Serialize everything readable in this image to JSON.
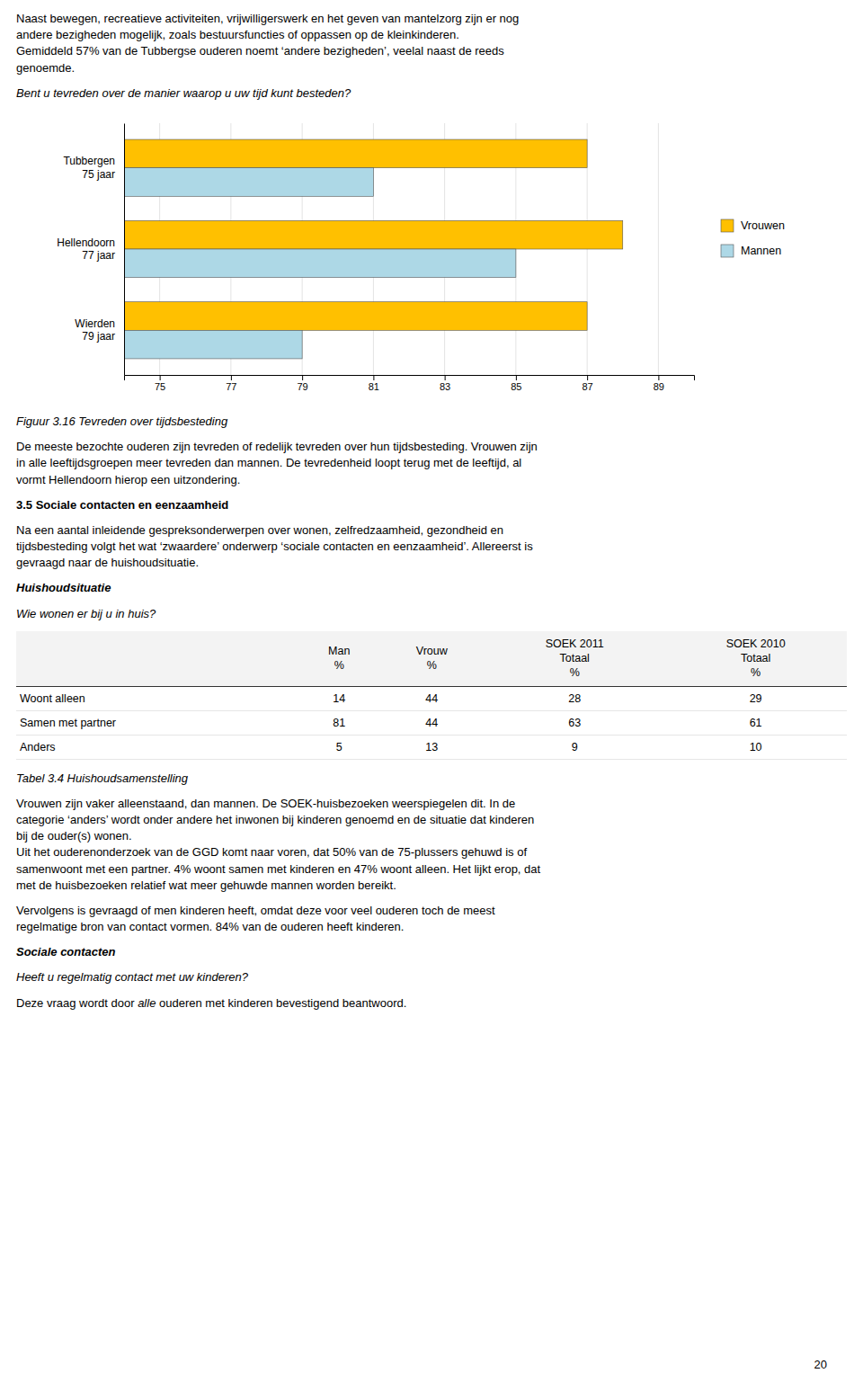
{
  "chart_data": {
    "type": "bar",
    "orientation": "horizontal",
    "categories": [
      "Tubbergen\n75 jaar",
      "Hellendoorn\n77 jaar",
      "Wierden\n79 jaar"
    ],
    "series": [
      {
        "name": "Vrouwen",
        "color": "#FFC000",
        "values": [
          87,
          88,
          87
        ]
      },
      {
        "name": "Mannen",
        "color": "#ADD8E6",
        "values": [
          81,
          85,
          79
        ]
      }
    ],
    "xlim": [
      74,
      90
    ],
    "xticks": [
      75,
      77,
      79,
      81,
      83,
      85,
      87,
      89
    ],
    "grid": true,
    "legend": "right"
  },
  "texts": {
    "para1": "Naast bewegen, recreatieve activiteiten, vrijwilligerswerk en het geven van mantelzorg zijn er nog\nandere bezigheden mogelijk, zoals bestuursfuncties of oppassen op de kleinkinderen.\nGemiddeld 57% van de Tubbergse ouderen noemt ‘andere bezigheden’, veelal naast de reeds\ngenoemde.",
    "question": "Bent u tevreden over de manier waarop u uw tijd kunt besteden?",
    "fig_caption": "Figuur 3.16 Tevreden over tijdsbesteding",
    "para2": "De meeste bezochte ouderen zijn tevreden of redelijk tevreden over hun tijdsbesteding. Vrouwen zijn\nin alle leeftijdsgroepen meer tevreden dan mannen. De tevredenheid loopt terug met de leeftijd, al\nvormt Hellendoorn hierop een uitzondering.",
    "section_title": "3.5 Sociale contacten en eenzaamheid",
    "para3": "Na een aantal inleidende gespreksonderwerpen over wonen, zelfredzaamheid, gezondheid en\ntijdsbesteding volgt het wat ‘zwaardere’ onderwerp ‘sociale contacten en eenzaamheid’. Allereerst is\ngevraagd naar de huishoudsituatie.",
    "subsection_title": "Huishoudsituatie",
    "subsection_question": "Wie wonen er bij u in huis?",
    "table_caption": "Tabel 3.4 Huishoudsamenstelling",
    "para4": "Vrouwen zijn vaker alleenstaand, dan mannen. De SOEK-huisbezoeken weerspiegelen dit. In de\ncategorie ‘anders’ wordt onder andere het inwonen bij kinderen genoemd en de situatie dat kinderen\nbij de ouder(s) wonen.\nUit het ouderenonderzoek van de GGD komt naar voren, dat 50% van de 75-plussers gehuwd is of\nsamenwoont met een partner. 4% woont samen met kinderen en 47% woont alleen. Het lijkt erop, dat\nmet de huisbezoeken relatief wat meer gehuwde mannen worden bereikt.",
    "para5": "Vervolgens is gevraagd of men kinderen heeft, omdat deze voor veel ouderen toch de meest\nregelmatige bron van contact vormen. 84% van de ouderen heeft kinderen.",
    "subsection2_title": "Sociale contacten",
    "subsection2_question": "Heeft u regelmatig contact met uw kinderen?",
    "subsection2_answer": [
      {
        "text": "Deze vraag wordt door ",
        "italic": false
      },
      {
        "text": "alle",
        "italic": true
      },
      {
        "text": " ouderen met kinderen bevestigend beantwoord.",
        "italic": false
      }
    ],
    "page_number": "20"
  },
  "table": {
    "column_headers": [
      "Man\n%",
      "Vrouw\n%",
      "SOEK 2011\nTotaal\n%",
      "SOEK 2010\nTotaal\n%"
    ],
    "rows": [
      [
        "Woont alleen",
        "14",
        "44",
        "28",
        "29"
      ],
      [
        "Samen met partner",
        "81",
        "44",
        "63",
        "61"
      ],
      [
        "Anders",
        "5",
        "13",
        "9",
        "10"
      ]
    ]
  }
}
